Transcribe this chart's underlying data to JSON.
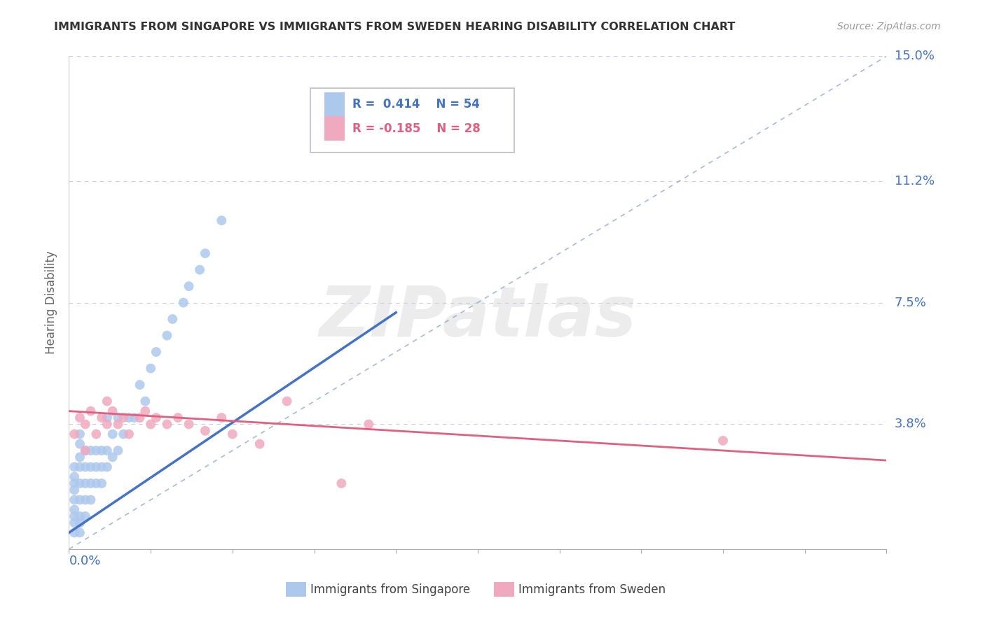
{
  "title": "IMMIGRANTS FROM SINGAPORE VS IMMIGRANTS FROM SWEDEN HEARING DISABILITY CORRELATION CHART",
  "source": "Source: ZipAtlas.com",
  "ylabel": "Hearing Disability",
  "ytick_vals": [
    0.0,
    0.038,
    0.075,
    0.112,
    0.15
  ],
  "ytick_labels": [
    "",
    "3.8%",
    "7.5%",
    "11.2%",
    "15.0%"
  ],
  "xlim": [
    0.0,
    0.15
  ],
  "ylim": [
    0.0,
    0.15
  ],
  "singapore_color": "#adc8ed",
  "sweden_color": "#f0aac0",
  "trend_blue": "#4472c4",
  "trend_pink": "#e06080",
  "diag_color": "#8899cc",
  "grid_color": "#ccccdd",
  "background": "#ffffff",
  "title_color": "#333333",
  "axis_tick_color": "#4472c4",
  "watermark_text": "ZIPatlas",
  "watermark_color": "#ececec",
  "legend_r1": "R =  0.414",
  "legend_n1": "N = 54",
  "legend_r2": "R = -0.185",
  "legend_n2": "N = 28",
  "legend_color1": "#4472c4",
  "legend_color2": "#e06080",
  "sg_x": [
    0.001,
    0.001,
    0.001,
    0.001,
    0.001,
    0.001,
    0.001,
    0.001,
    0.001,
    0.002,
    0.002,
    0.002,
    0.002,
    0.002,
    0.002,
    0.002,
    0.002,
    0.002,
    0.003,
    0.003,
    0.003,
    0.003,
    0.003,
    0.004,
    0.004,
    0.004,
    0.004,
    0.005,
    0.005,
    0.005,
    0.006,
    0.006,
    0.006,
    0.007,
    0.007,
    0.007,
    0.008,
    0.008,
    0.009,
    0.009,
    0.01,
    0.011,
    0.012,
    0.013,
    0.014,
    0.015,
    0.016,
    0.018,
    0.019,
    0.021,
    0.022,
    0.024,
    0.025,
    0.028
  ],
  "sg_y": [
    0.005,
    0.008,
    0.01,
    0.012,
    0.015,
    0.018,
    0.02,
    0.022,
    0.025,
    0.005,
    0.008,
    0.01,
    0.015,
    0.02,
    0.025,
    0.028,
    0.032,
    0.035,
    0.01,
    0.015,
    0.02,
    0.025,
    0.03,
    0.015,
    0.02,
    0.025,
    0.03,
    0.02,
    0.025,
    0.03,
    0.02,
    0.025,
    0.03,
    0.025,
    0.03,
    0.04,
    0.028,
    0.035,
    0.03,
    0.04,
    0.035,
    0.04,
    0.04,
    0.05,
    0.045,
    0.055,
    0.06,
    0.065,
    0.07,
    0.075,
    0.08,
    0.085,
    0.09,
    0.1
  ],
  "sw_x": [
    0.001,
    0.002,
    0.003,
    0.003,
    0.004,
    0.005,
    0.006,
    0.007,
    0.007,
    0.008,
    0.009,
    0.01,
    0.011,
    0.013,
    0.014,
    0.015,
    0.016,
    0.018,
    0.02,
    0.022,
    0.025,
    0.028,
    0.03,
    0.035,
    0.04,
    0.05,
    0.055,
    0.12
  ],
  "sw_y": [
    0.035,
    0.04,
    0.03,
    0.038,
    0.042,
    0.035,
    0.04,
    0.038,
    0.045,
    0.042,
    0.038,
    0.04,
    0.035,
    0.04,
    0.042,
    0.038,
    0.04,
    0.038,
    0.04,
    0.038,
    0.036,
    0.04,
    0.035,
    0.032,
    0.045,
    0.02,
    0.038,
    0.033
  ],
  "sg_trend_x": [
    0.0,
    0.06
  ],
  "sg_trend_y": [
    0.005,
    0.072
  ],
  "sw_trend_x": [
    0.0,
    0.15
  ],
  "sw_trend_y": [
    0.042,
    0.027
  ]
}
